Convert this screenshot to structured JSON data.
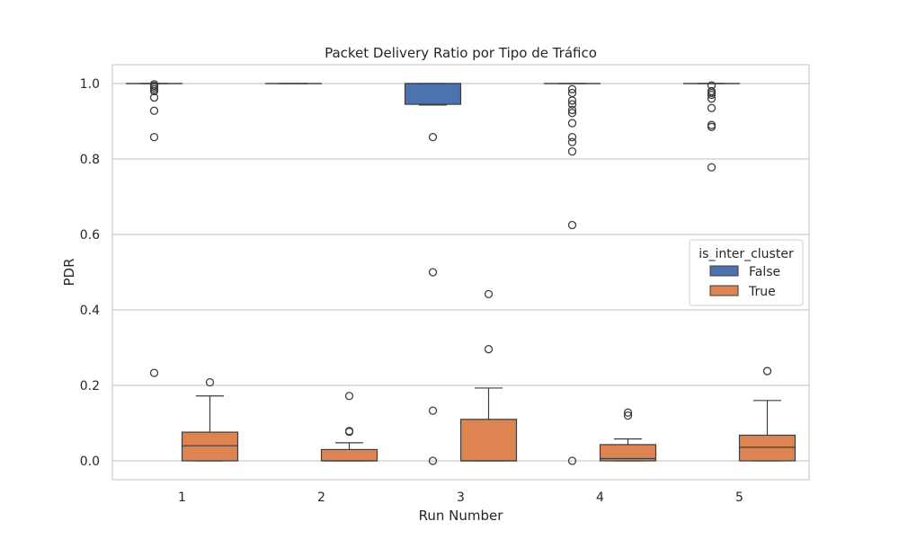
{
  "chart_data": {
    "type": "boxplot",
    "title": "Packet Delivery Ratio por Tipo de Tráfico",
    "xlabel": "Run Number",
    "ylabel": "PDR",
    "categories": [
      "1",
      "2",
      "3",
      "4",
      "5"
    ],
    "ylim": [
      -0.05,
      1.05
    ],
    "yticks": [
      "0.0",
      "0.2",
      "0.4",
      "0.6",
      "0.8",
      "1.0"
    ],
    "grid": "horizontal",
    "legend": {
      "title": "is_inter_cluster",
      "placement": "center-right"
    },
    "series": [
      {
        "name": "False",
        "color": "#4c72b0",
        "boxes": [
          {
            "category": "1",
            "min": 1.0,
            "q1": 1.0,
            "median": 1.0,
            "q3": 1.0,
            "max": 1.0,
            "outliers": [
              0.998,
              0.994,
              0.99,
              0.985,
              0.98,
              0.963,
              0.928,
              0.858,
              0.233
            ]
          },
          {
            "category": "2",
            "min": 1.0,
            "q1": 1.0,
            "median": 1.0,
            "q3": 1.0,
            "max": 1.0,
            "outliers": []
          },
          {
            "category": "3",
            "min": 0.943,
            "q1": 0.945,
            "median": 1.0,
            "q3": 1.0,
            "max": 1.0,
            "outliers": [
              0.858,
              0.5,
              0.133,
              0.0
            ]
          },
          {
            "category": "4",
            "min": 1.0,
            "q1": 1.0,
            "median": 1.0,
            "q3": 1.0,
            "max": 1.0,
            "outliers": [
              0.985,
              0.975,
              0.955,
              0.945,
              0.93,
              0.922,
              0.895,
              0.858,
              0.845,
              0.82,
              0.625,
              0.0
            ]
          },
          {
            "category": "5",
            "min": 1.0,
            "q1": 1.0,
            "median": 1.0,
            "q3": 1.0,
            "max": 1.0,
            "outliers": [
              0.995,
              0.98,
              0.975,
              0.97,
              0.96,
              0.935,
              0.89,
              0.885,
              0.778
            ]
          }
        ]
      },
      {
        "name": "True",
        "color": "#dd8452",
        "boxes": [
          {
            "category": "1",
            "min": 0.0,
            "q1": 0.0,
            "median": 0.04,
            "q3": 0.076,
            "max": 0.172,
            "outliers": [
              0.208
            ]
          },
          {
            "category": "2",
            "min": 0.0,
            "q1": 0.0,
            "median": 0.0,
            "q3": 0.03,
            "max": 0.048,
            "outliers": [
              0.077,
              0.079,
              0.172
            ]
          },
          {
            "category": "3",
            "min": 0.0,
            "q1": 0.0,
            "median": 0.0,
            "q3": 0.11,
            "max": 0.193,
            "outliers": [
              0.296,
              0.442
            ]
          },
          {
            "category": "4",
            "min": 0.0,
            "q1": 0.0,
            "median": 0.006,
            "q3": 0.043,
            "max": 0.058,
            "outliers": [
              0.12,
              0.128
            ]
          },
          {
            "category": "5",
            "min": 0.0,
            "q1": 0.0,
            "median": 0.036,
            "q3": 0.068,
            "max": 0.16,
            "outliers": [
              0.238
            ]
          }
        ]
      }
    ]
  }
}
